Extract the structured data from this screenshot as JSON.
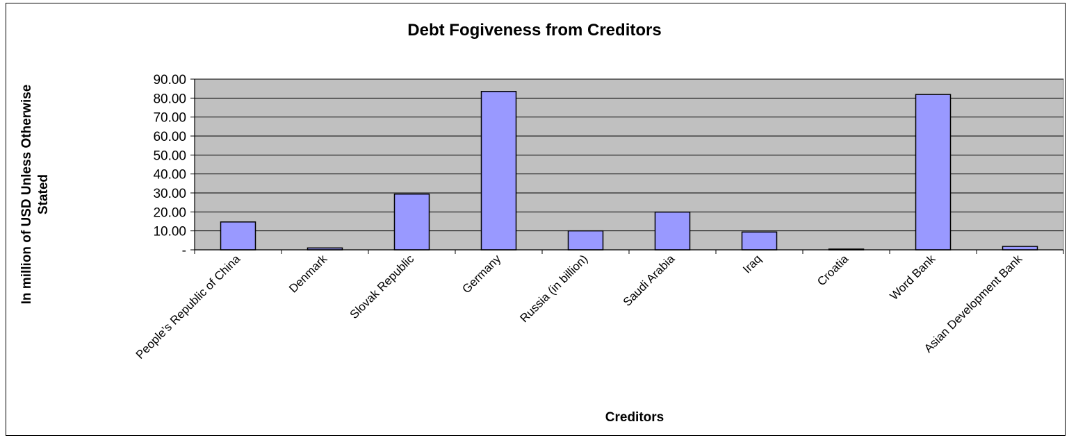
{
  "chart_data": {
    "type": "bar",
    "title": "Debt Fogiveness from Creditors",
    "xlabel": "Creditors",
    "ylabel_lines": [
      "In million of USD Unless Otherwise",
      "Stated"
    ],
    "categories": [
      "People’s Republic of China",
      "Denmark",
      "Slovak Republic",
      "Germany",
      "Russia (in billion)",
      "Saudi Arabia",
      "Iraq",
      "Croatia",
      "Word Bank",
      "Asian Development Bank"
    ],
    "values": [
      14.7,
      1.0,
      29.4,
      83.5,
      10.0,
      19.9,
      9.4,
      0.4,
      81.9,
      1.8
    ],
    "ylim": [
      0,
      90
    ],
    "yticks": [
      0,
      10,
      20,
      30,
      40,
      50,
      60,
      70,
      80,
      90
    ],
    "ytick_labels": [
      "-",
      "10.00",
      "20.00",
      "30.00",
      "40.00",
      "50.00",
      "60.00",
      "70.00",
      "80.00",
      "90.00"
    ],
    "grid": true,
    "legend": "none",
    "colors": {
      "bar_fill": "#9999FF",
      "bar_stroke": "#000000",
      "plot_background": "#C0C0C0",
      "gridline": "#000000"
    }
  }
}
